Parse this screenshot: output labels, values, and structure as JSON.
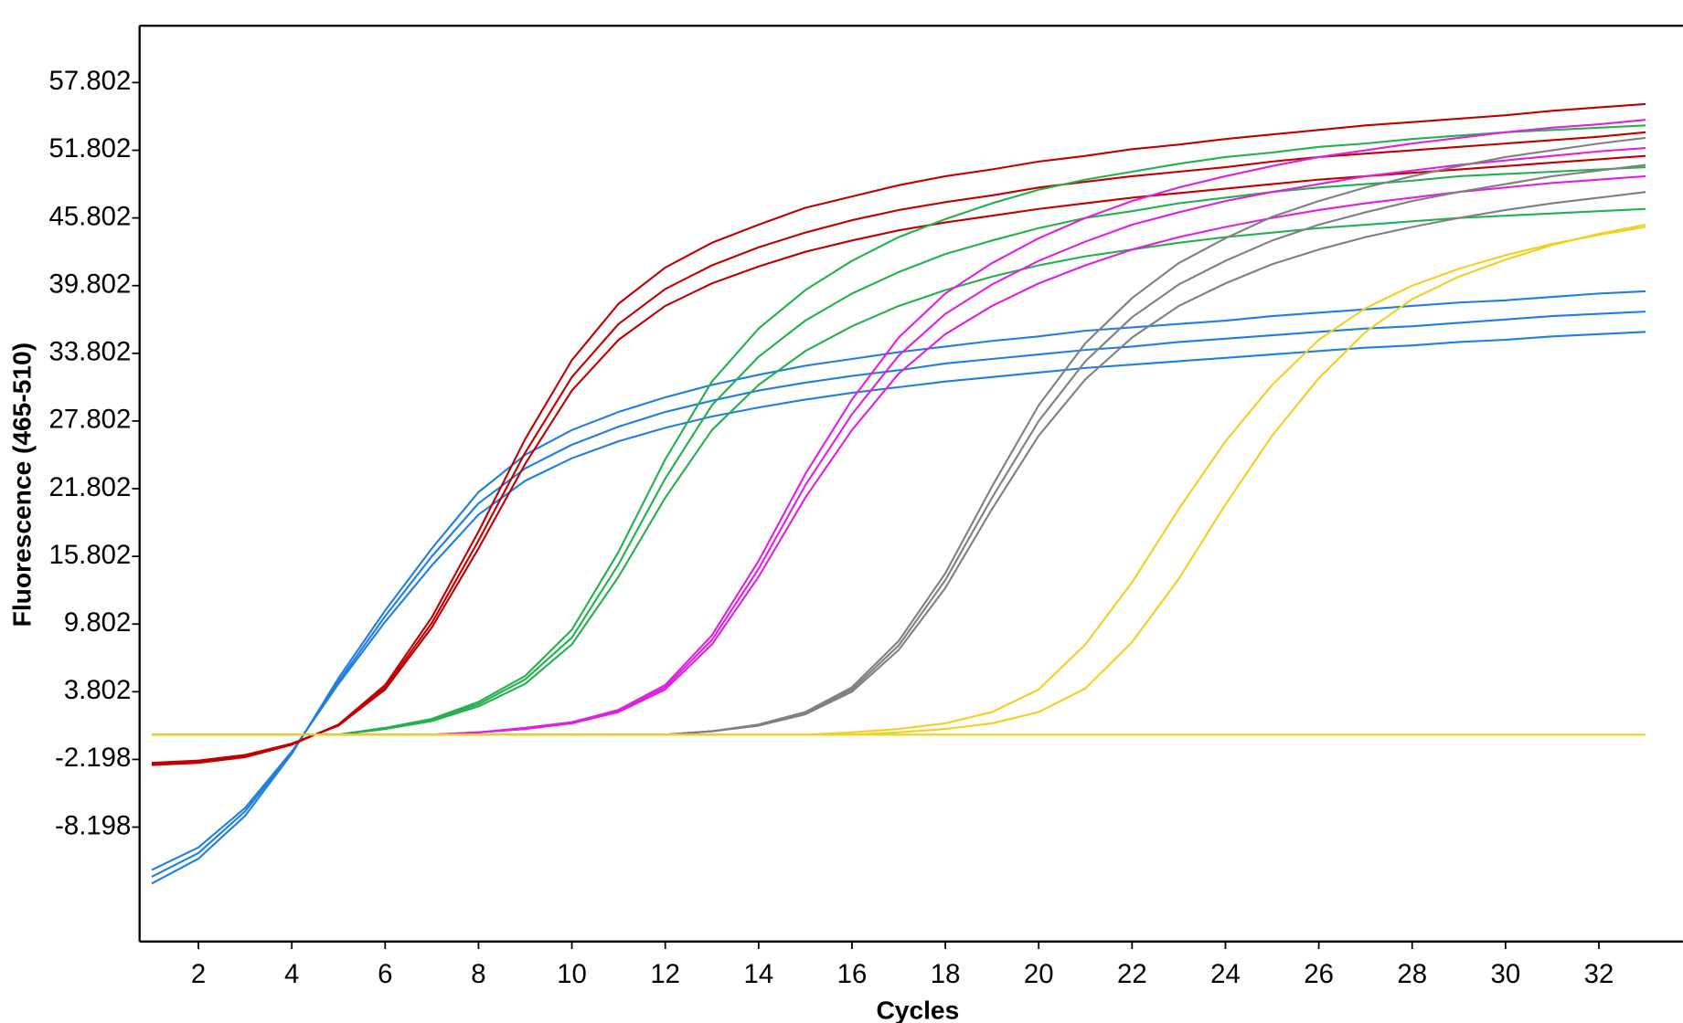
{
  "chart_data": {
    "type": "line",
    "ylabel": "Fluorescence (465-510)",
    "xlabel": "Cycles",
    "xlim": [
      0.74,
      33.8
    ],
    "ylim": [
      -18.34,
      62.84
    ],
    "xticks": [
      2,
      4,
      6,
      8,
      10,
      12,
      14,
      16,
      18,
      20,
      22,
      24,
      26,
      28,
      30,
      32
    ],
    "yticks": [
      -8.198,
      -2.198,
      3.802,
      9.802,
      15.802,
      21.802,
      27.802,
      33.802,
      39.802,
      45.802,
      51.802,
      57.802
    ],
    "x": [
      1,
      2,
      3,
      4,
      5,
      6,
      7,
      8,
      9,
      10,
      11,
      12,
      13,
      14,
      15,
      16,
      17,
      18,
      19,
      20,
      21,
      22,
      23,
      24,
      25,
      26,
      27,
      28,
      29,
      30,
      31,
      32,
      33
    ],
    "series": [
      {
        "color": "#f0d020",
        "values": [
          0,
          0,
          0,
          0,
          0,
          0,
          0,
          0,
          0,
          0,
          0,
          0,
          0,
          0,
          0,
          0,
          0,
          0,
          0,
          0,
          0,
          0,
          0,
          0,
          0,
          0,
          0,
          0,
          0,
          0,
          0,
          0,
          0
        ]
      },
      {
        "color": "#1f7fe0",
        "values": [
          -12,
          -10,
          -6.5,
          -1.5,
          4.5,
          10,
          15,
          19.5,
          22.5,
          24.5,
          26,
          27.2,
          28.2,
          29,
          29.7,
          30.3,
          30.8,
          31.3,
          31.7,
          32.1,
          32.5,
          32.8,
          33.1,
          33.4,
          33.7,
          34,
          34.3,
          34.5,
          34.8,
          35,
          35.3,
          35.5,
          35.7
        ]
      },
      {
        "color": "#1f7fe0",
        "values": [
          -12.6,
          -10.5,
          -6.8,
          -1.6,
          4.7,
          10.5,
          15.8,
          20.5,
          23.6,
          25.7,
          27.3,
          28.6,
          29.6,
          30.5,
          31.2,
          31.8,
          32.3,
          32.9,
          33.3,
          33.7,
          34.1,
          34.4,
          34.8,
          35.1,
          35.4,
          35.7,
          36,
          36.2,
          36.5,
          36.8,
          37.1,
          37.3,
          37.5
        ]
      },
      {
        "color": "#1f7fe0",
        "values": [
          -13.2,
          -11,
          -7.2,
          -1.7,
          5,
          11,
          16.5,
          21.5,
          24.8,
          27,
          28.6,
          29.9,
          31,
          31.9,
          32.7,
          33.3,
          33.9,
          34.4,
          34.9,
          35.3,
          35.8,
          36.1,
          36.4,
          36.7,
          37.1,
          37.4,
          37.7,
          38,
          38.3,
          38.5,
          38.8,
          39.1,
          39.3
        ]
      },
      {
        "color": "#c00000",
        "values": [
          -2.5,
          -2.3,
          -1.8,
          -0.8,
          0.8,
          4,
          9.5,
          16.5,
          24,
          30.5,
          35,
          38,
          40,
          41.5,
          42.8,
          43.8,
          44.7,
          45.4,
          46,
          46.6,
          47.1,
          47.6,
          48,
          48.4,
          48.8,
          49.2,
          49.5,
          49.8,
          50.1,
          50.4,
          50.7,
          51,
          51.3
        ]
      },
      {
        "color": "#c00000",
        "values": [
          -2.6,
          -2.4,
          -1.9,
          -0.8,
          0.8,
          4.2,
          9.9,
          17.2,
          25,
          31.7,
          36.4,
          39.5,
          41.6,
          43.2,
          44.5,
          45.6,
          46.5,
          47.2,
          47.8,
          48.5,
          49,
          49.5,
          49.9,
          50.3,
          50.8,
          51.2,
          51.5,
          51.8,
          52.1,
          52.4,
          52.7,
          53,
          53.4
        ]
      },
      {
        "color": "#c00000",
        "values": [
          -2.7,
          -2.5,
          -2,
          -0.9,
          0.9,
          4.4,
          10.4,
          18,
          26.2,
          33.2,
          38.2,
          41.4,
          43.6,
          45.2,
          46.7,
          47.7,
          48.7,
          49.5,
          50.1,
          50.8,
          51.3,
          51.9,
          52.3,
          52.8,
          53.2,
          53.6,
          54,
          54.3,
          54.6,
          54.9,
          55.3,
          55.6,
          55.9
        ]
      },
      {
        "color": "#22b14c",
        "values": [
          0,
          0,
          0,
          0,
          0,
          0.5,
          1.2,
          2.5,
          4.5,
          8,
          14,
          21,
          27,
          31,
          34,
          36.2,
          38,
          39.4,
          40.6,
          41.6,
          42.4,
          43,
          43.6,
          44.1,
          44.5,
          44.9,
          45.2,
          45.5,
          45.8,
          46,
          46.2,
          46.4,
          46.6
        ]
      },
      {
        "color": "#22b14c",
        "values": [
          0,
          0,
          0,
          0,
          0,
          0.5,
          1.3,
          2.7,
          4.9,
          8.6,
          15.1,
          22.7,
          29.2,
          33.5,
          36.7,
          39.1,
          41,
          42.6,
          43.8,
          44.9,
          45.8,
          46.4,
          47.1,
          47.6,
          48.1,
          48.5,
          48.8,
          49.1,
          49.5,
          49.7,
          49.9,
          50.1,
          50.3
        ]
      },
      {
        "color": "#22b14c",
        "values": [
          0,
          0,
          0,
          0,
          0,
          0.6,
          1.4,
          2.9,
          5.2,
          9.3,
          16.2,
          24.4,
          31.3,
          36,
          39.4,
          42,
          44.1,
          45.7,
          47.1,
          48.3,
          49.2,
          49.9,
          50.6,
          51.2,
          51.6,
          52.1,
          52.4,
          52.8,
          53.1,
          53.4,
          53.6,
          53.8,
          54
        ]
      },
      {
        "color": "#e020e0",
        "values": [
          0,
          0,
          0,
          0,
          0,
          0,
          0,
          0.2,
          0.5,
          1,
          2,
          4,
          8,
          14,
          21,
          27,
          32,
          35.5,
          38,
          40,
          41.6,
          43,
          44.1,
          45,
          45.8,
          46.5,
          47.1,
          47.6,
          48.1,
          48.5,
          48.9,
          49.2,
          49.5
        ]
      },
      {
        "color": "#e020e0",
        "values": [
          0,
          0,
          0,
          0,
          0,
          0,
          0,
          0.2,
          0.5,
          1.1,
          2.1,
          4.2,
          8.4,
          14.7,
          22.1,
          28.4,
          33.6,
          37.3,
          39.9,
          42,
          43.7,
          45.2,
          46.3,
          47.3,
          48.1,
          48.8,
          49.5,
          50,
          50.5,
          50.9,
          51.3,
          51.7,
          52
        ]
      },
      {
        "color": "#e020e0",
        "values": [
          0,
          0,
          0,
          0,
          0,
          0,
          0,
          0.2,
          0.6,
          1.1,
          2.2,
          4.4,
          8.8,
          15.4,
          23.1,
          29.7,
          35.2,
          39.1,
          41.8,
          44,
          45.8,
          47.3,
          48.5,
          49.5,
          50.4,
          51.2,
          51.8,
          52.4,
          52.9,
          53.4,
          53.8,
          54.1,
          54.5
        ]
      },
      {
        "color": "#808080",
        "values": [
          0,
          0,
          0,
          0,
          0,
          0,
          0,
          0,
          0,
          0,
          0,
          0,
          0.3,
          0.8,
          1.8,
          3.8,
          7.5,
          13,
          20,
          26.5,
          31.5,
          35.2,
          38,
          40,
          41.7,
          43,
          44.1,
          45,
          45.8,
          46.5,
          47.1,
          47.6,
          48.1
        ]
      },
      {
        "color": "#808080",
        "values": [
          0,
          0,
          0,
          0,
          0,
          0,
          0,
          0,
          0,
          0,
          0,
          0,
          0.3,
          0.8,
          1.9,
          4,
          7.9,
          13.7,
          21,
          27.8,
          33.1,
          37,
          39.9,
          42,
          43.8,
          45.2,
          46.3,
          47.3,
          48.1,
          48.8,
          49.5,
          50,
          50.5
        ]
      },
      {
        "color": "#808080",
        "values": [
          0,
          0,
          0,
          0,
          0,
          0,
          0,
          0,
          0,
          0,
          0,
          0,
          0.3,
          0.9,
          2,
          4.2,
          8.3,
          14.3,
          22,
          29.2,
          34.7,
          38.7,
          41.8,
          44,
          45.9,
          47.3,
          48.5,
          49.5,
          50.4,
          51.2,
          51.8,
          52.4,
          52.9
        ]
      },
      {
        "color": "#f0d020",
        "values": [
          0,
          0,
          0,
          0,
          0,
          0,
          0,
          0,
          0,
          0,
          0,
          0,
          0,
          0,
          0,
          0.2,
          0.5,
          1,
          2,
          4,
          8,
          13.5,
          20,
          26,
          31,
          35,
          37.8,
          39.8,
          41.3,
          42.5,
          43.5,
          44.3,
          45
        ]
      },
      {
        "color": "#f0d020",
        "values": [
          0,
          0,
          0,
          0,
          0,
          0,
          0,
          0,
          0,
          0,
          0,
          0,
          0,
          0,
          0,
          0,
          0.2,
          0.5,
          1,
          2,
          4.1,
          8.2,
          13.8,
          20.4,
          26.5,
          31.6,
          35.7,
          38.6,
          40.6,
          42.1,
          43.4,
          44.4,
          45.2
        ]
      }
    ]
  }
}
